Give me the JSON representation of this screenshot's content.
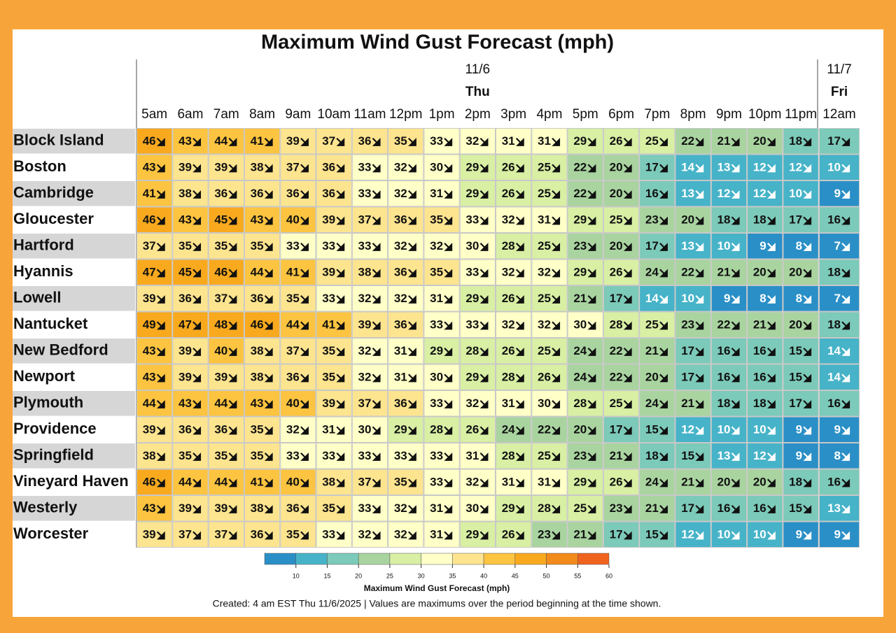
{
  "chart_data": {
    "type": "heatmap",
    "title": "Maximum Wind Gust Forecast (mph)",
    "day_groups": [
      {
        "date": "11/6",
        "weekday": "Thu",
        "count": 19
      },
      {
        "date": "11/7",
        "weekday": "Fri",
        "count": 1
      }
    ],
    "categories": [
      "5am",
      "6am",
      "7am",
      "8am",
      "9am",
      "10am",
      "11am",
      "12pm",
      "1pm",
      "2pm",
      "3pm",
      "4pm",
      "5pm",
      "6pm",
      "7pm",
      "8pm",
      "9pm",
      "10pm",
      "11pm",
      "12am"
    ],
    "rows": [
      "Block Island",
      "Boston",
      "Cambridge",
      "Gloucester",
      "Hartford",
      "Hyannis",
      "Lowell",
      "Nantucket",
      "New Bedford",
      "Newport",
      "Plymouth",
      "Providence",
      "Springfield",
      "Vineyard Haven",
      "Westerly",
      "Worcester"
    ],
    "values": [
      [
        46,
        43,
        44,
        41,
        39,
        37,
        36,
        35,
        33,
        32,
        31,
        31,
        29,
        26,
        25,
        22,
        21,
        20,
        18,
        17
      ],
      [
        43,
        39,
        39,
        38,
        37,
        36,
        33,
        32,
        30,
        29,
        26,
        25,
        22,
        20,
        17,
        14,
        13,
        12,
        12,
        10
      ],
      [
        41,
        38,
        36,
        36,
        36,
        36,
        33,
        32,
        31,
        29,
        26,
        25,
        22,
        20,
        16,
        13,
        12,
        12,
        10,
        9
      ],
      [
        46,
        43,
        45,
        43,
        40,
        39,
        37,
        36,
        35,
        33,
        32,
        31,
        29,
        25,
        23,
        20,
        18,
        18,
        17,
        16
      ],
      [
        37,
        35,
        35,
        35,
        33,
        33,
        33,
        32,
        32,
        30,
        28,
        25,
        23,
        20,
        17,
        13,
        10,
        9,
        8,
        7
      ],
      [
        47,
        45,
        46,
        44,
        41,
        39,
        38,
        36,
        35,
        33,
        32,
        32,
        29,
        26,
        24,
        22,
        21,
        20,
        20,
        18
      ],
      [
        39,
        36,
        37,
        36,
        35,
        33,
        32,
        32,
        31,
        29,
        26,
        25,
        21,
        17,
        14,
        10,
        9,
        8,
        8,
        7
      ],
      [
        49,
        47,
        48,
        46,
        44,
        41,
        39,
        36,
        33,
        33,
        32,
        32,
        30,
        28,
        25,
        23,
        22,
        21,
        20,
        18
      ],
      [
        43,
        39,
        40,
        38,
        37,
        35,
        32,
        31,
        29,
        28,
        26,
        25,
        24,
        22,
        21,
        17,
        16,
        16,
        15,
        14
      ],
      [
        43,
        39,
        39,
        38,
        36,
        35,
        32,
        31,
        30,
        29,
        28,
        26,
        24,
        22,
        20,
        17,
        16,
        16,
        15,
        14
      ],
      [
        44,
        43,
        44,
        43,
        40,
        39,
        37,
        36,
        33,
        32,
        31,
        30,
        28,
        25,
        24,
        21,
        18,
        18,
        17,
        16
      ],
      [
        39,
        36,
        36,
        35,
        32,
        31,
        30,
        29,
        28,
        26,
        24,
        22,
        20,
        17,
        15,
        12,
        10,
        10,
        9,
        9
      ],
      [
        38,
        35,
        35,
        35,
        33,
        33,
        33,
        33,
        33,
        31,
        28,
        25,
        23,
        21,
        18,
        15,
        13,
        12,
        9,
        8
      ],
      [
        46,
        44,
        44,
        41,
        40,
        38,
        37,
        35,
        33,
        32,
        31,
        31,
        29,
        26,
        24,
        21,
        20,
        20,
        18,
        16
      ],
      [
        43,
        39,
        39,
        38,
        36,
        35,
        33,
        32,
        31,
        30,
        29,
        28,
        25,
        23,
        21,
        17,
        16,
        16,
        15,
        13
      ],
      [
        39,
        37,
        37,
        36,
        35,
        33,
        32,
        32,
        31,
        29,
        26,
        23,
        21,
        17,
        15,
        12,
        10,
        10,
        9,
        9
      ]
    ],
    "colorbar": {
      "label": "Maximum Wind Gust Forecast (mph)",
      "bins": [
        5,
        10,
        15,
        20,
        25,
        30,
        35,
        40,
        45,
        50,
        55,
        60
      ],
      "colors": [
        "#2a8fc6",
        "#46b3c8",
        "#7ccab9",
        "#a9d4a0",
        "#d8efa4",
        "#ffffc8",
        "#fde48f",
        "#fcc440",
        "#f8a91e",
        "#f38a1c",
        "#f0631f"
      ],
      "ticks": [
        10,
        15,
        20,
        25,
        30,
        35,
        40,
        45,
        50,
        55,
        60
      ]
    },
    "footer": "Created: 4 am EST Thu 11/6/2025  |  Values are maximums over the period beginning at the time shown."
  }
}
